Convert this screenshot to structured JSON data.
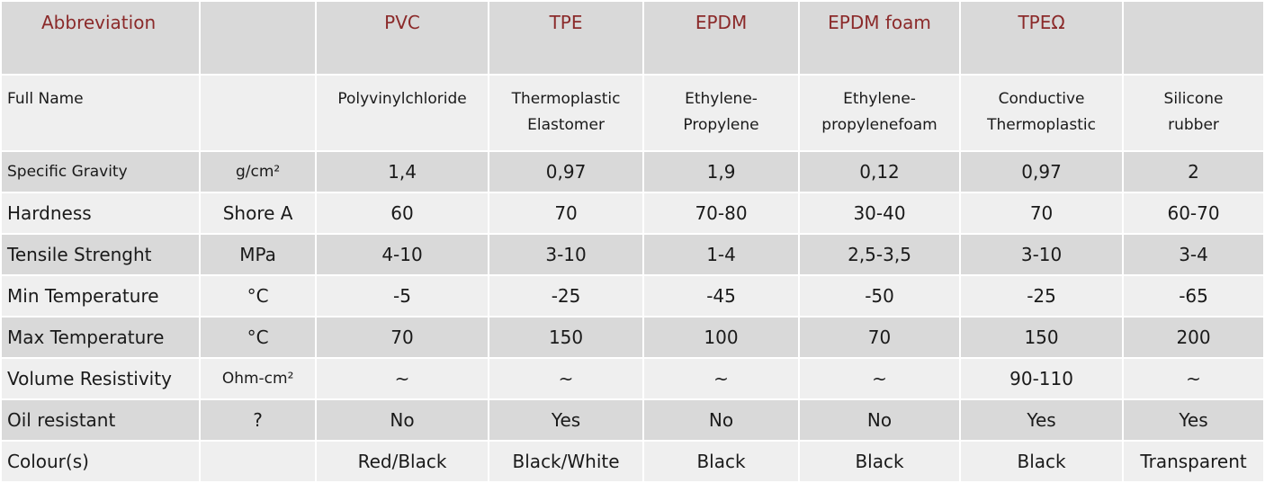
{
  "table": {
    "header": {
      "label": "Abbreviation",
      "unit": "",
      "values": [
        "PVC",
        "TPE",
        "EPDM",
        "EPDM foam",
        "TPEΩ",
        ""
      ]
    },
    "rows": [
      {
        "label": "Full Name",
        "unit": "",
        "values": [
          [
            "Polyvinylchloride",
            ""
          ],
          [
            "Thermoplastic",
            "Elastomer"
          ],
          [
            "Ethylene-",
            "Propylene"
          ],
          [
            "Ethylene-",
            "propylenefoam"
          ],
          [
            "Conductive",
            "Thermoplastic"
          ],
          [
            "Silicone",
            "rubber"
          ]
        ]
      },
      {
        "label": "Specific Gravity",
        "unit": "g/cm²",
        "values": [
          "1,4",
          "0,97",
          "1,9",
          "0,12",
          "0,97",
          "2"
        ]
      },
      {
        "label": "Hardness",
        "unit": "Shore A",
        "values": [
          "60",
          "70",
          "70-80",
          "30-40",
          "70",
          "60-70"
        ]
      },
      {
        "label": "Tensile Strenght",
        "unit": "MPa",
        "values": [
          "4-10",
          "3-10",
          "1-4",
          "2,5-3,5",
          "3-10",
          "3-4"
        ]
      },
      {
        "label": "Min Temperature",
        "unit": "°C",
        "values": [
          "-5",
          "-25",
          "-45",
          "-50",
          "-25",
          "-65"
        ]
      },
      {
        "label": "Max Temperature",
        "unit": "°C",
        "values": [
          "70",
          "150",
          "100",
          "70",
          "150",
          "200"
        ]
      },
      {
        "label": "Volume Resistivity",
        "unit": "Ohm-cm²",
        "values": [
          "~",
          "~",
          "~",
          "~",
          "90-110",
          "~"
        ]
      },
      {
        "label": "Oil resistant",
        "unit": "?",
        "values": [
          "No",
          "Yes",
          "No",
          "No",
          "Yes",
          "Yes"
        ]
      },
      {
        "label": "Colour(s)",
        "unit": "",
        "values": [
          "Red/Black",
          "Black/White",
          "Black",
          "Black",
          "Black",
          "Transparent"
        ]
      }
    ]
  },
  "colors": {
    "header_text": "#8b2a2a",
    "row_dark": "#d9d9d9",
    "row_light": "#efefef",
    "border": "#ffffff"
  }
}
